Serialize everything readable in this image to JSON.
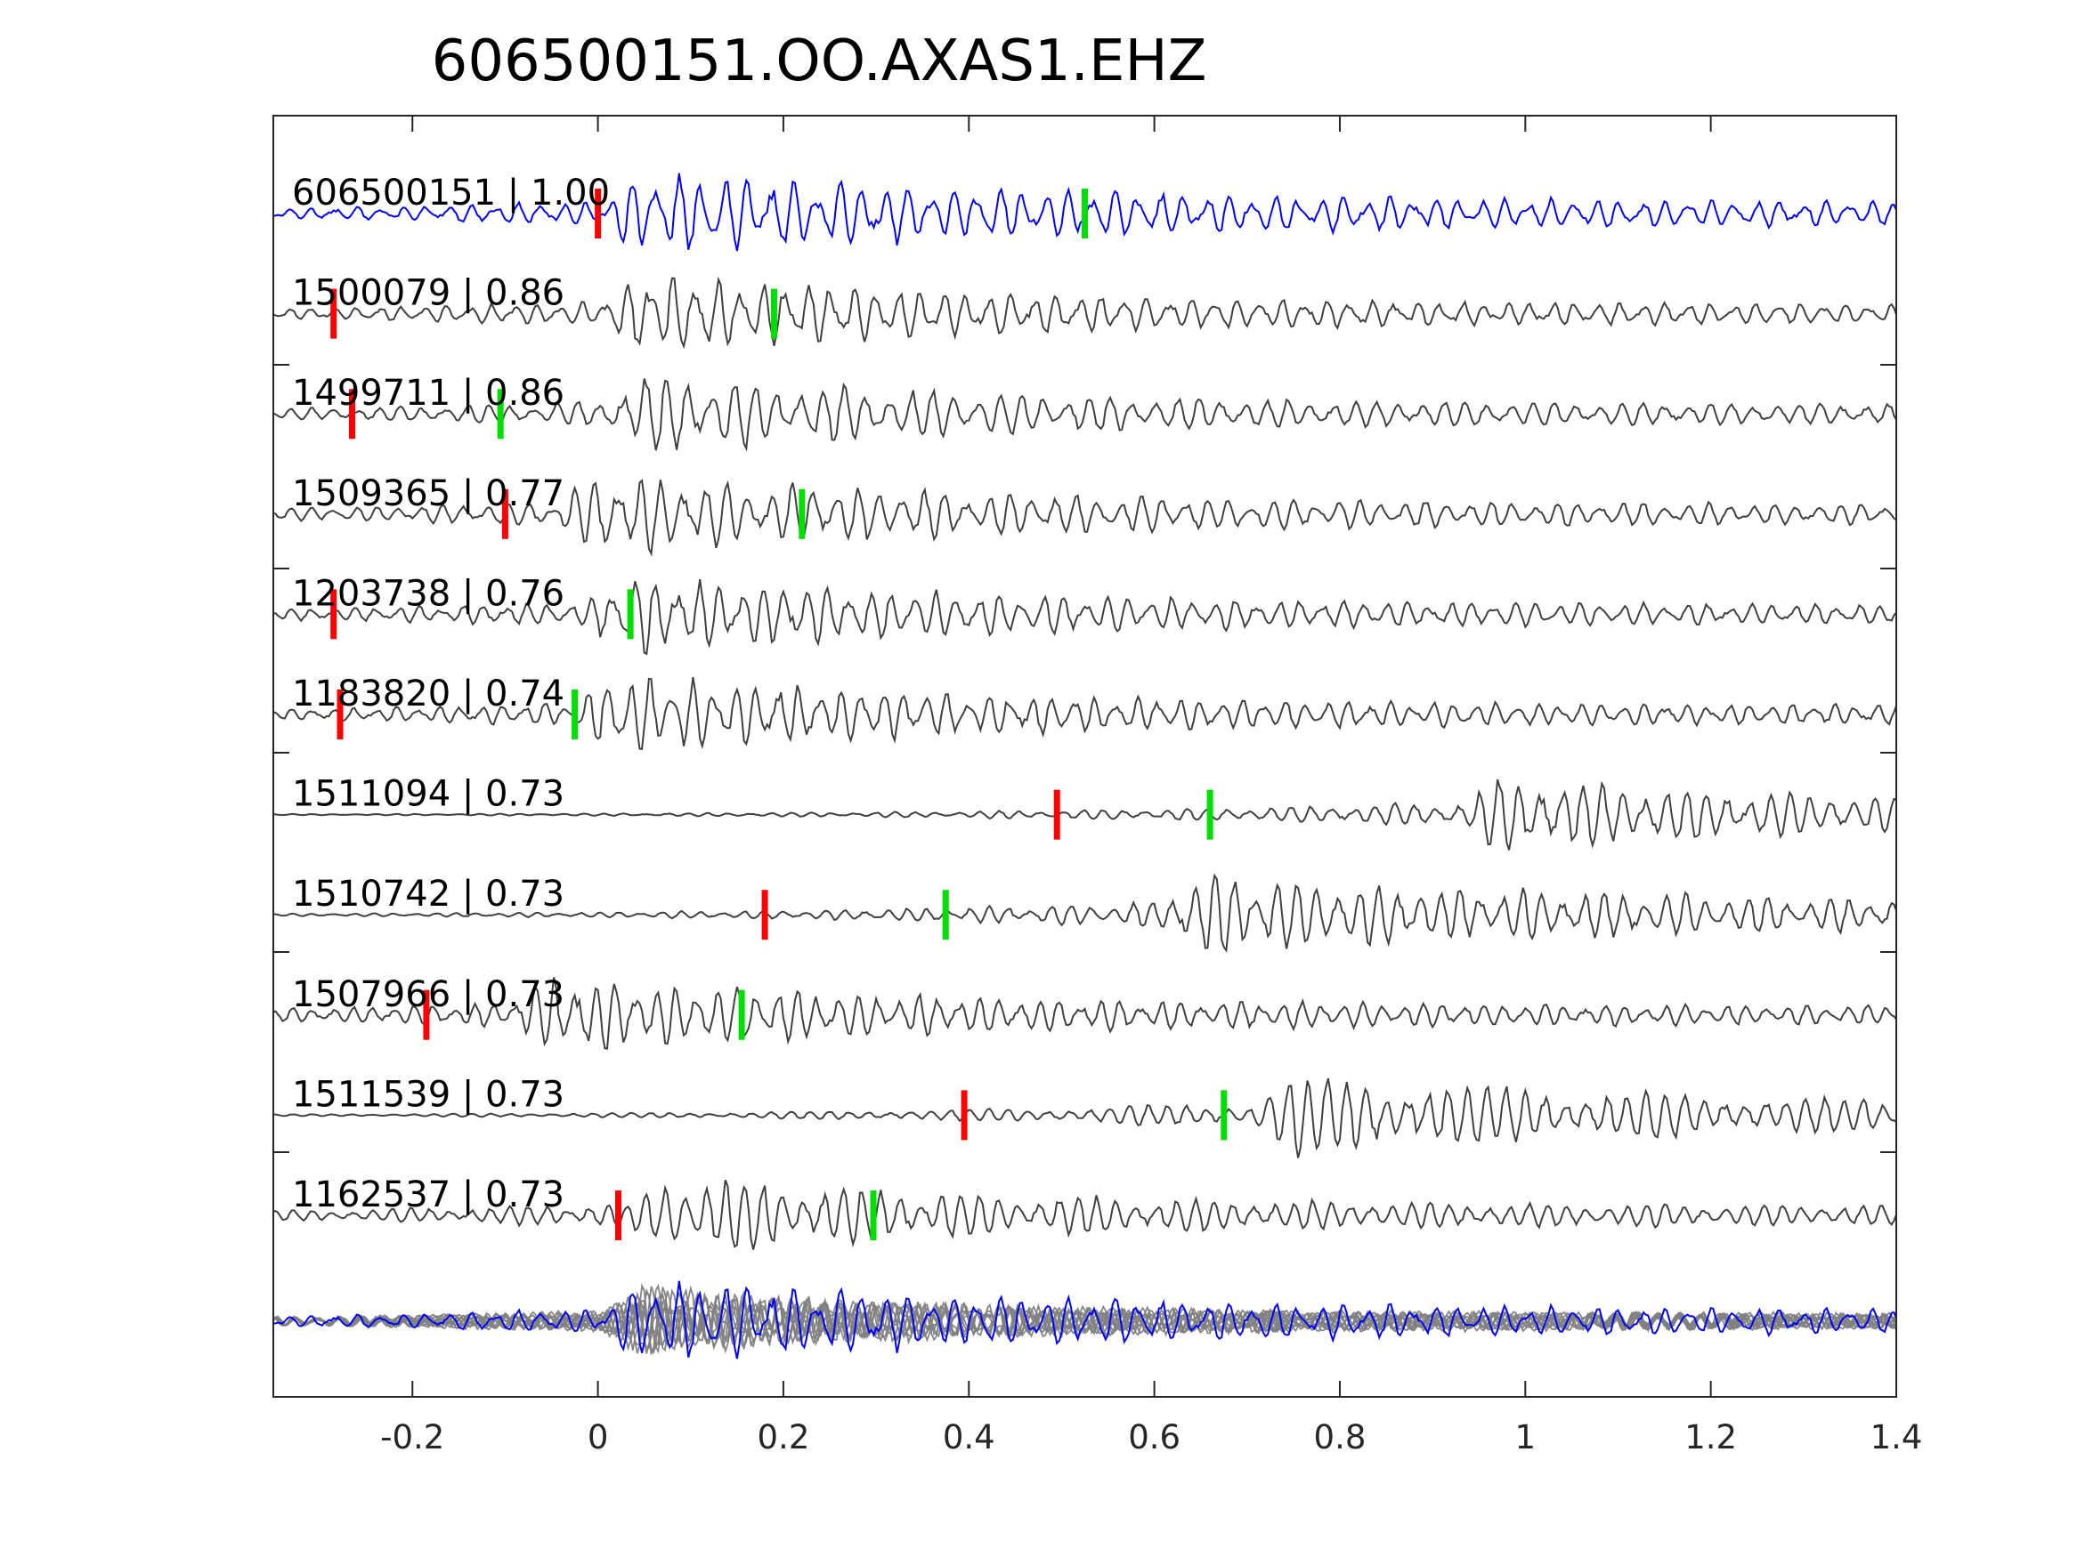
{
  "chart_data": {
    "type": "line",
    "title": "606500151.OO.AXAS1.EHZ",
    "xlim": [
      -0.35,
      1.4
    ],
    "xticks": [
      -0.2,
      0,
      0.2,
      0.4,
      0.6,
      0.8,
      1,
      1.2,
      1.4
    ],
    "xtick_labels": [
      "-0.2",
      "0",
      "0.2",
      "0.4",
      "0.6",
      "0.8",
      "1",
      "1.2",
      "1.4"
    ],
    "xlabel": "",
    "ylabel": "",
    "grid": false,
    "colors": {
      "template": "#0000ff",
      "match": "#404040",
      "stack": "#808080",
      "p_pick": "#ff0000",
      "s_pick": "#00dd00",
      "axes": "#262626"
    },
    "traces": [
      {
        "event_id": "606500151",
        "cc": "1.00",
        "label": "606500151 | 1.00",
        "p_pick": 0.0,
        "s_pick": 0.525,
        "onset": 0.0,
        "coda": 0.55
      },
      {
        "event_id": "1500079",
        "cc": "0.86",
        "label": "1500079 | 0.86",
        "p_pick": -0.285,
        "s_pick": 0.19,
        "onset": 0.0,
        "coda": 0.4
      },
      {
        "event_id": "1499711",
        "cc": "0.86",
        "label": "1499711 | 0.86",
        "p_pick": -0.265,
        "s_pick": -0.105,
        "onset": 0.0,
        "coda": 0.4
      },
      {
        "event_id": "1509365",
        "cc": "0.77",
        "label": "1509365 | 0.77",
        "p_pick": -0.1,
        "s_pick": 0.22,
        "onset": -0.05,
        "coda": 0.45
      },
      {
        "event_id": "1203738",
        "cc": "0.76",
        "label": "1203738 | 0.76",
        "p_pick": -0.285,
        "s_pick": 0.035,
        "onset": -0.02,
        "coda": 0.4
      },
      {
        "event_id": "1183820",
        "cc": "0.74",
        "label": "1183820 | 0.74",
        "p_pick": -0.278,
        "s_pick": -0.025,
        "onset": -0.03,
        "coda": 0.4
      },
      {
        "event_id": "1511094",
        "cc": "0.73",
        "label": "1511094 | 0.73",
        "p_pick": 0.495,
        "s_pick": 0.66,
        "onset": 0.93,
        "coda": 0.35
      },
      {
        "event_id": "1510742",
        "cc": "0.73",
        "label": "1510742 | 0.73",
        "p_pick": 0.18,
        "s_pick": 0.375,
        "onset": 0.6,
        "coda": 0.5
      },
      {
        "event_id": "1507966",
        "cc": "0.73",
        "label": "1507966 | 0.73",
        "p_pick": -0.185,
        "s_pick": 0.155,
        "onset": -0.1,
        "coda": 0.4
      },
      {
        "event_id": "1511539",
        "cc": "0.73",
        "label": "1511539 | 0.73",
        "p_pick": 0.395,
        "s_pick": 0.675,
        "onset": 0.7,
        "coda": 0.45
      },
      {
        "event_id": "1162537",
        "cc": "0.73",
        "label": "1162537 | 0.73",
        "p_pick": 0.022,
        "s_pick": 0.297,
        "onset": 0.03,
        "coda": 0.4
      }
    ],
    "stack": {
      "label": "",
      "series_count": 11
    }
  }
}
